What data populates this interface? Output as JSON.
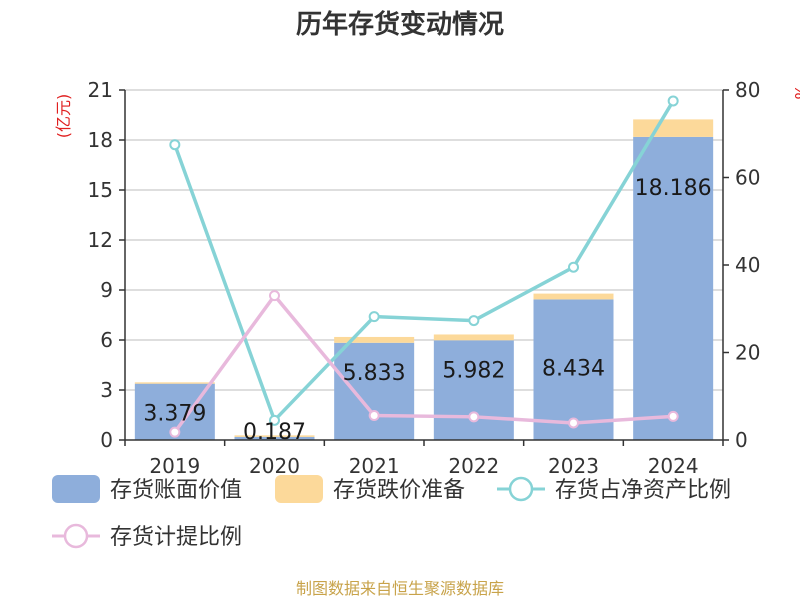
{
  "chart_data": {
    "type": "bar",
    "title": "历年存货变动情况",
    "left_axis_unit": "(亿元)",
    "right_axis_unit": "%",
    "categories": [
      "2019",
      "2020",
      "2021",
      "2022",
      "2023",
      "2024"
    ],
    "left_ylim": [
      0,
      21
    ],
    "left_ticks": [
      0,
      3,
      6,
      9,
      12,
      15,
      18,
      21
    ],
    "right_ylim": [
      0,
      80
    ],
    "right_ticks": [
      0,
      20,
      40,
      60,
      80
    ],
    "grid": true,
    "legend_position": "bottom",
    "series": [
      {
        "name": "存货账面价值",
        "type": "bar",
        "stack": "inv",
        "axis": "left",
        "color": "#8eaedb",
        "values": [
          3.379,
          0.187,
          5.833,
          5.982,
          8.434,
          18.186
        ],
        "labels": [
          "3.379",
          "0.187",
          "5.833",
          "5.982",
          "8.434",
          "18.186"
        ]
      },
      {
        "name": "存货跌价准备",
        "type": "bar",
        "stack": "inv",
        "axis": "left",
        "color": "#fcd99a",
        "values": [
          0.08,
          0.09,
          0.35,
          0.35,
          0.35,
          1.05
        ]
      },
      {
        "name": "存货占净资产比例",
        "type": "line",
        "axis": "right",
        "color": "#86d3d6",
        "values": [
          67.5,
          4.5,
          28.2,
          27.3,
          39.5,
          77.5
        ]
      },
      {
        "name": "存货计提比例",
        "type": "line",
        "axis": "right",
        "color": "#e8b9dc",
        "values": [
          1.8,
          33.0,
          5.6,
          5.3,
          3.9,
          5.4
        ]
      }
    ]
  },
  "source_text": "制图数据来自恒生聚源数据库"
}
